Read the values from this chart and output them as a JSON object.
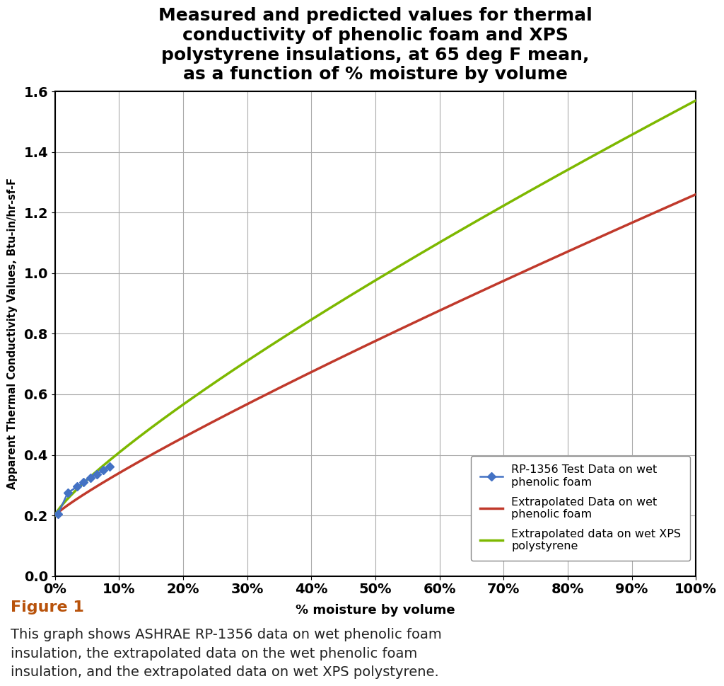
{
  "title": "Measured and predicted values for thermal\nconductivity of phenolic foam and XPS\npolystyrene insulations, at 65 deg F mean,\nas a function of % moisture by volume",
  "xlabel": "% moisture by volume",
  "ylabel": "Apparent Thermal Conductivity Values, Btu-in/hr-sf-F",
  "xlim": [
    0,
    1.0
  ],
  "ylim": [
    0.0,
    1.6
  ],
  "yticks": [
    0.0,
    0.2,
    0.4,
    0.6,
    0.8,
    1.0,
    1.2,
    1.4,
    1.6
  ],
  "xticks": [
    0,
    0.1,
    0.2,
    0.3,
    0.4,
    0.5,
    0.6,
    0.7,
    0.8,
    0.9,
    1.0
  ],
  "xtick_labels": [
    "0%",
    "10%",
    "20%",
    "30%",
    "40%",
    "50%",
    "60%",
    "70%",
    "80%",
    "90%",
    "100%"
  ],
  "blue_scatter_x": [
    0.005,
    0.02,
    0.035,
    0.045,
    0.055,
    0.065,
    0.075,
    0.085
  ],
  "blue_scatter_y": [
    0.205,
    0.275,
    0.295,
    0.31,
    0.325,
    0.335,
    0.35,
    0.362
  ],
  "red_line_color": "#C0392B",
  "green_line_color": "#7DB800",
  "blue_scatter_color": "#4472C4",
  "background_color": "#FFFFFF",
  "chart_bg_color": "#FFFFFF",
  "grid_color": "#AAAAAA",
  "title_fontsize": 18,
  "axis_label_fontsize": 13,
  "tick_fontsize": 14,
  "legend_entries": [
    "RP-1356 Test Data on wet\nphenolic foam",
    "Extrapolated Data on wet\nphenolic foam",
    "Extrapolated data on wet XPS\npolystyrene"
  ],
  "figure_caption_title": "Figure 1",
  "figure_caption_body": "This graph shows ASHRAE RP-1356 data on wet phenolic foam\ninsulation, the extrapolated data on the wet phenolic foam\ninsulation, and the extrapolated data on wet XPS polystyrene.",
  "red_line_y0": 0.2,
  "red_line_y1": 1.26,
  "green_line_y0": 0.2,
  "green_line_y1": 1.57
}
